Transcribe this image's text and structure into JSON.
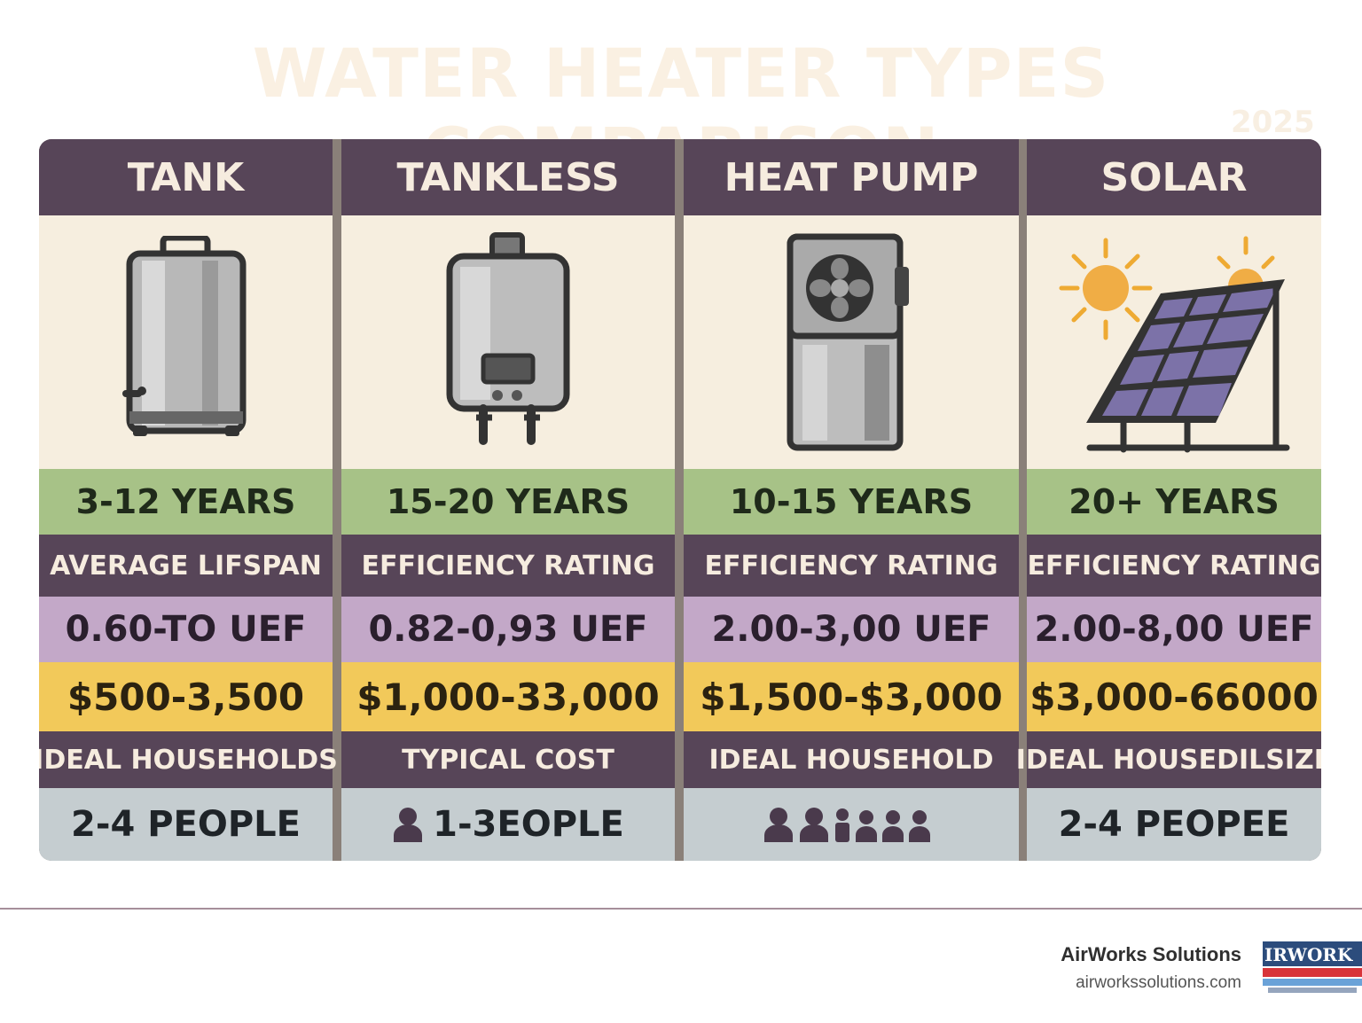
{
  "title": "WATER HEATER TYPES COMPARISON",
  "year": "2025",
  "columns": [
    {
      "name": "TANK",
      "lifespan": "3-12 YEARS",
      "label1": "AVERAGE LIFSPAN",
      "uef": "0.60-TO UEF",
      "cost": "$500-3,500",
      "label2": "IDEAL HOUSEHOLDS",
      "people": "2-4 PEOPLE"
    },
    {
      "name": "TANKLESS",
      "lifespan": "15-20 YEARS",
      "label1": "EFFICIENCY RATING",
      "uef": "0.82-0,93 UEF",
      "cost": "$1,000-33,000",
      "label2": "TYPICAL COST",
      "people": "1-3EOPLE"
    },
    {
      "name": "HEAT PUMP",
      "lifespan": "10-15 YEARS",
      "label1": "EFFICIENCY RATING",
      "uef": "2.00-3,00 UEF",
      "cost": "$1,500-$3,000",
      "label2": "IDEAL HOUSEHOLD",
      "people": ""
    },
    {
      "name": "SOLAR",
      "lifespan": "20+ YEARS",
      "label1": "EFFICIENCY RATING",
      "uef": "2.00-8,00 UEF",
      "cost": "$3,000-66000",
      "label2": "IDEAL HOUSEDILSIZE",
      "people": "2-4 PEOPEE"
    }
  ],
  "icons": {
    "col0": "tank-heater-icon",
    "col1": "tankless-heater-icon",
    "col2": "heat-pump-icon",
    "col3": "solar-panel-icon",
    "people": "person-icon"
  },
  "colors": {
    "header": "#574558",
    "image_bg": "#f6eedf",
    "lifespan": "#a7c287",
    "uef": "#c3a8c8",
    "cost": "#f2c95a",
    "people": "#c5cdd0"
  },
  "footer": {
    "brand": "AirWorks Solutions",
    "url": "airworkssolutions.com",
    "logo_text": "IRWORK"
  }
}
